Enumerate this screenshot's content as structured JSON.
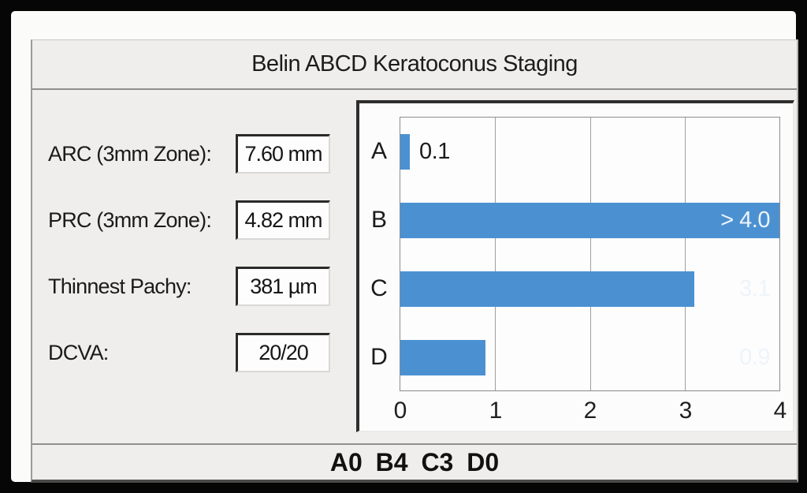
{
  "title": "Belin ABCD Keratoconus Staging",
  "fields": [
    {
      "label": "ARC (3mm Zone):",
      "value": "7.60 mm"
    },
    {
      "label": "PRC (3mm Zone):",
      "value": "4.82 mm"
    },
    {
      "label": "Thinnest Pachy:",
      "value": "381 µm"
    },
    {
      "label": "DCVA:",
      "value": "20/20"
    }
  ],
  "chart_data": {
    "type": "bar",
    "orientation": "horizontal",
    "categories": [
      "A",
      "B",
      "C",
      "D"
    ],
    "values": [
      0.1,
      4.0,
      3.1,
      0.9
    ],
    "value_labels": [
      "0.1",
      "> 4.0",
      "3.1",
      "0.9"
    ],
    "xlim": [
      0,
      4
    ],
    "ticks": [
      "0",
      "1",
      "2",
      "3",
      "4"
    ],
    "grid": "vertical gridlines at 1, 2, 3",
    "bar_color": "#4b91d2",
    "title": "",
    "xlabel": "",
    "ylabel": ""
  },
  "footer": {
    "staging": "A0 B4 C3 D0"
  },
  "colors": {
    "panel_bg": "#efeeec",
    "chart_bg": "#fcfcfc",
    "bar_blue": "#4b91d2",
    "frame_dark": "#2e2e2e",
    "separator_gray": "#8f8f8f"
  }
}
